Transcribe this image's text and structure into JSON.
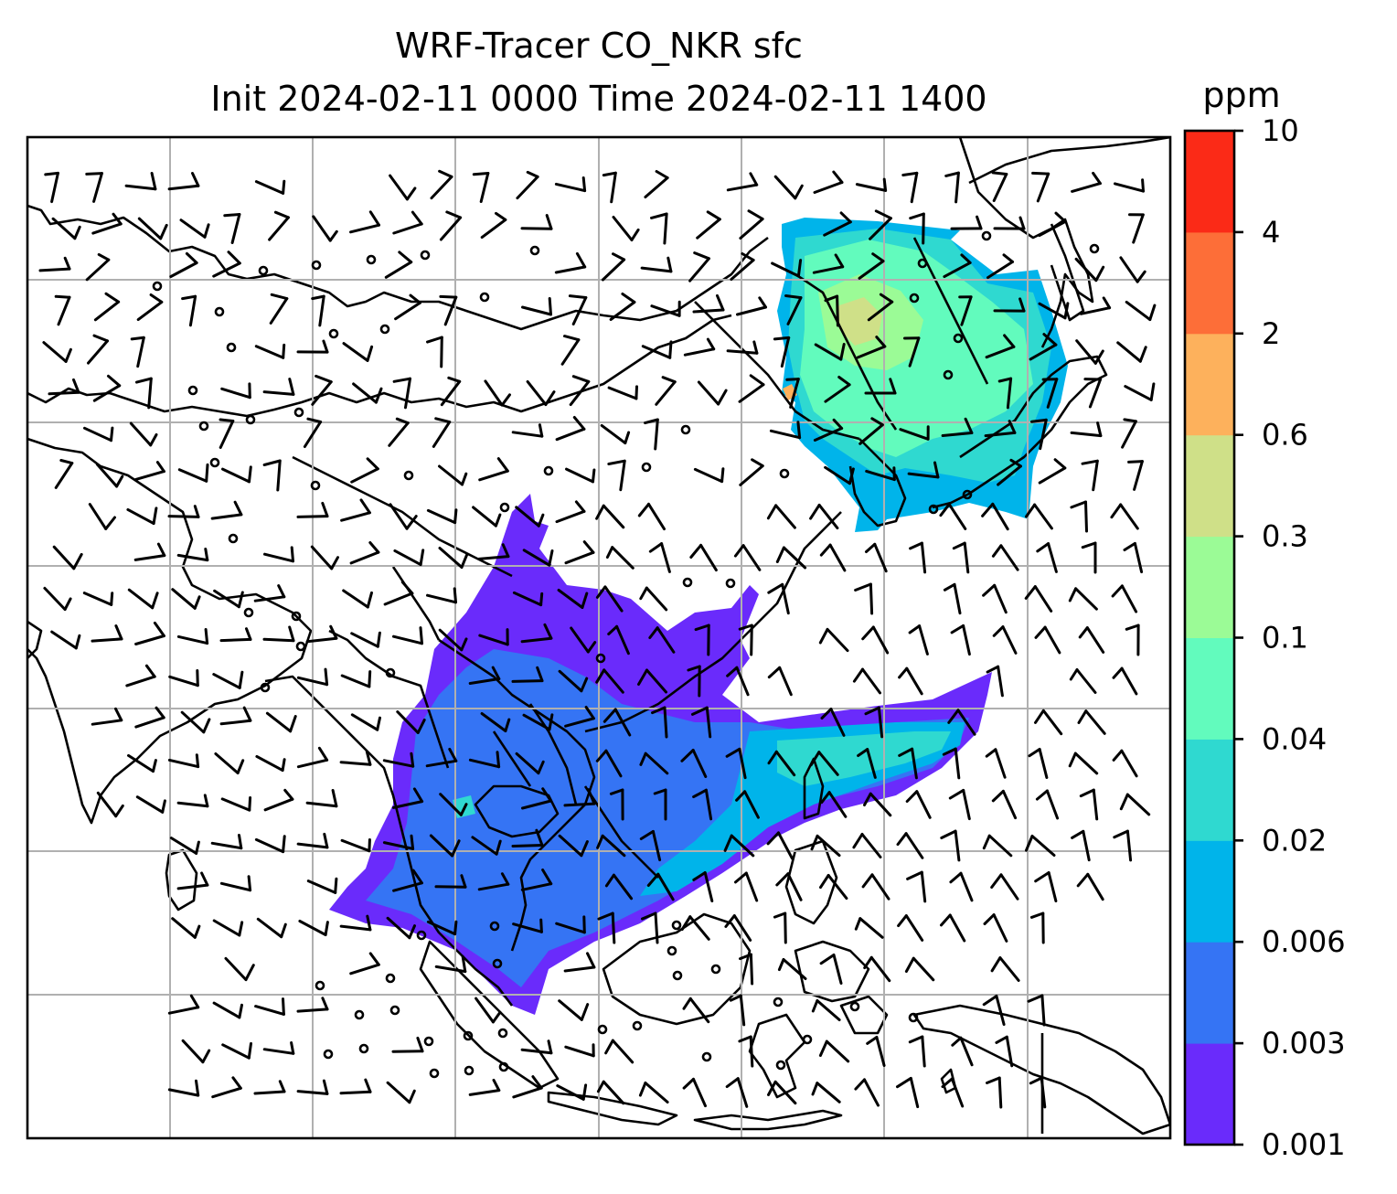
{
  "title_line1": "WRF-Tracer CO_NKR sfc",
  "title_line2": "Init 2024-02-11 0000 Time 2024-02-11 1400",
  "colorbar": {
    "unit": "ppm",
    "levels": [
      "0.001",
      "0.003",
      "0.006",
      "0.02",
      "0.04",
      "0.1",
      "0.3",
      "0.6",
      "2",
      "4",
      "10"
    ],
    "colors": [
      "#6a2bfb",
      "#3574f4",
      "#00b4ea",
      "#2fd9d0",
      "#62fbbd",
      "#9bfb96",
      "#cfe088",
      "#fdb15c",
      "#fd6e38",
      "#fb2a17"
    ]
  },
  "chart_data": {
    "type": "map",
    "variable": "CO_NKR",
    "level": "sfc",
    "unit": "ppm",
    "init": "2024-02-11 0000",
    "valid": "2024-02-11 1400",
    "gridlines": true,
    "overlays": [
      "coastlines",
      "wind-barbs",
      "station-circles"
    ]
  }
}
